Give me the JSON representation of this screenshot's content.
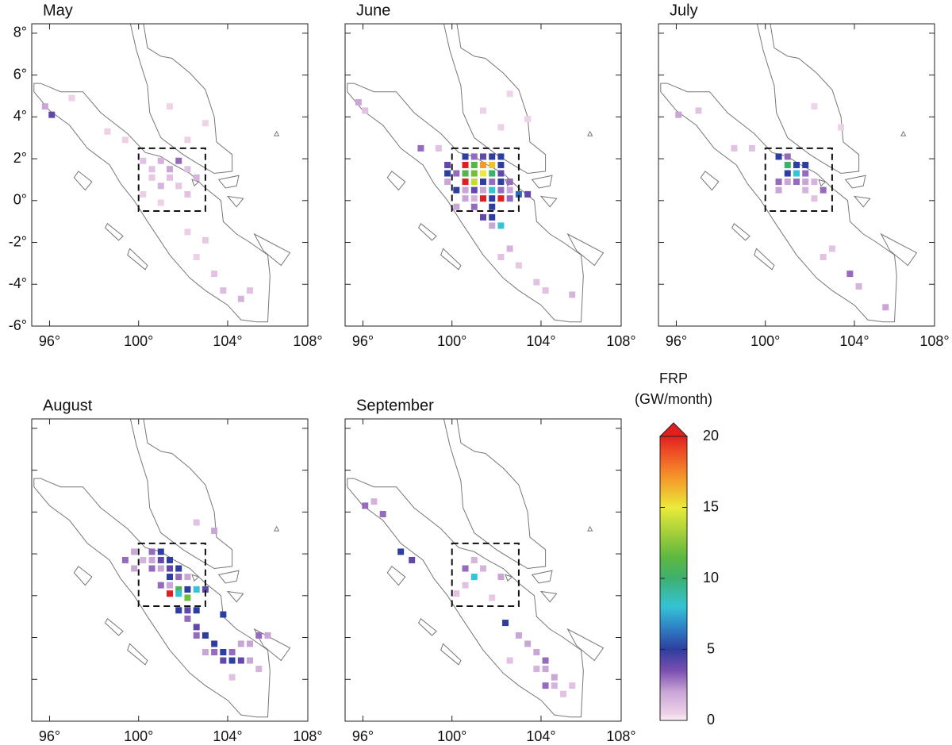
{
  "axes": {
    "xlim": [
      95.2,
      107.6
    ],
    "ylim": [
      -6,
      8.45
    ],
    "xticks": [
      {
        "value": 96,
        "label": "96°"
      },
      {
        "value": 100,
        "label": "100°"
      },
      {
        "value": 104,
        "label": "104°"
      },
      {
        "value": 108,
        "label": "108°"
      }
    ],
    "yticks": [
      {
        "value": 8,
        "label": "8°"
      },
      {
        "value": 6,
        "label": "6°"
      },
      {
        "value": 4,
        "label": "4°"
      },
      {
        "value": 2,
        "label": "2°"
      },
      {
        "value": 0,
        "label": "0°"
      },
      {
        "value": -2,
        "label": "-2°"
      },
      {
        "value": -4,
        "label": "-4°"
      },
      {
        "value": -6,
        "label": "-6°"
      }
    ]
  },
  "region_box": {
    "lon": [
      100,
      103
    ],
    "lat": [
      -0.5,
      2.5
    ]
  },
  "panels": [
    {
      "title": "May",
      "y_tick_labels": true,
      "cells": [
        [
          100.2,
          1.9,
          1
        ],
        [
          100.6,
          1.5,
          1
        ],
        [
          101,
          1.9,
          1.5
        ],
        [
          101.4,
          1.5,
          2
        ],
        [
          101.8,
          1.9,
          3
        ],
        [
          102.2,
          1.5,
          1
        ],
        [
          100.6,
          1.1,
          0.8
        ],
        [
          101,
          0.7,
          1.5
        ],
        [
          101.4,
          1.1,
          1
        ],
        [
          101.8,
          0.7,
          0.8
        ],
        [
          102.2,
          0.3,
          1
        ],
        [
          100.2,
          0.3,
          0.6
        ],
        [
          101,
          -0.1,
          0.5
        ],
        [
          102.6,
          1.1,
          1.5
        ],
        [
          96.1,
          4.1,
          4
        ],
        [
          95.8,
          4.5,
          2
        ],
        [
          97,
          4.9,
          0.5
        ],
        [
          98.6,
          3.3,
          0.5
        ],
        [
          99.4,
          2.9,
          0.5
        ],
        [
          102.2,
          -1.5,
          0.6
        ],
        [
          103,
          -1.9,
          0.8
        ],
        [
          103.4,
          -3.5,
          1
        ],
        [
          103.8,
          -4.3,
          1.2
        ],
        [
          104.6,
          -4.7,
          1.5
        ],
        [
          105,
          -4.3,
          1
        ],
        [
          102.6,
          -2.7,
          0.5
        ],
        [
          103,
          3.7,
          0.4
        ],
        [
          101.4,
          4.5,
          0.4
        ],
        [
          102.2,
          2.9,
          0.5
        ]
      ]
    },
    {
      "title": "June",
      "y_tick_labels": false,
      "cells": [
        [
          100.6,
          2.1,
          5
        ],
        [
          101,
          2.1,
          3
        ],
        [
          101.4,
          2.1,
          4
        ],
        [
          101.8,
          2.1,
          5
        ],
        [
          102.2,
          2.1,
          5
        ],
        [
          100.6,
          1.7,
          20
        ],
        [
          101,
          1.7,
          11
        ],
        [
          101.4,
          1.7,
          17
        ],
        [
          101.8,
          1.7,
          16
        ],
        [
          102.2,
          1.7,
          5
        ],
        [
          100.2,
          1.3,
          3
        ],
        [
          100.6,
          1.3,
          11
        ],
        [
          101,
          1.3,
          12
        ],
        [
          101.4,
          1.3,
          15
        ],
        [
          101.8,
          1.3,
          10
        ],
        [
          102.2,
          1.3,
          4
        ],
        [
          100.6,
          0.9,
          20
        ],
        [
          101,
          0.9,
          14
        ],
        [
          101.4,
          0.9,
          5
        ],
        [
          101.8,
          0.9,
          3
        ],
        [
          102.2,
          0.9,
          5
        ],
        [
          102.6,
          0.9,
          3
        ],
        [
          100.2,
          0.5,
          5
        ],
        [
          100.6,
          0.5,
          2
        ],
        [
          101,
          0.5,
          4
        ],
        [
          101.4,
          0.5,
          2
        ],
        [
          101.8,
          0.5,
          8
        ],
        [
          102.2,
          0.5,
          3
        ],
        [
          102.6,
          0.5,
          2
        ],
        [
          100.6,
          0.1,
          2
        ],
        [
          101,
          0.1,
          1.5
        ],
        [
          101.4,
          0.1,
          20
        ],
        [
          101.8,
          0.1,
          5
        ],
        [
          102.2,
          0.1,
          20
        ],
        [
          102.6,
          0.1,
          3
        ],
        [
          103,
          0.3,
          6
        ],
        [
          100.2,
          -0.3,
          2
        ],
        [
          101,
          -0.3,
          3
        ],
        [
          101.8,
          -0.3,
          5
        ],
        [
          101.4,
          -0.8,
          4
        ],
        [
          101.8,
          -0.8,
          5
        ],
        [
          102.2,
          -1.2,
          8
        ],
        [
          101.8,
          -1.2,
          2
        ],
        [
          96.1,
          4.3,
          1
        ],
        [
          95.8,
          4.7,
          2
        ],
        [
          98.6,
          2.5,
          3
        ],
        [
          99.4,
          2.5,
          1
        ],
        [
          99.8,
          1.7,
          4
        ],
        [
          99.8,
          1.3,
          5
        ],
        [
          99.8,
          0.9,
          2
        ],
        [
          103.4,
          0.3,
          4
        ],
        [
          102.6,
          -2.3,
          1.5
        ],
        [
          103.8,
          -3.9,
          1
        ],
        [
          104.2,
          -4.3,
          1
        ],
        [
          105.4,
          -4.5,
          1.5
        ],
        [
          103,
          -3.1,
          0.8
        ],
        [
          102.2,
          -2.7,
          1
        ],
        [
          101.4,
          4.3,
          0.5
        ],
        [
          102.2,
          3.5,
          0.5
        ],
        [
          103.4,
          3.9,
          0.5
        ],
        [
          102.6,
          5.1,
          0.4
        ]
      ]
    },
    {
      "title": "July",
      "y_tick_labels": false,
      "cells": [
        [
          100.6,
          2.1,
          5
        ],
        [
          101,
          2.1,
          3
        ],
        [
          101.4,
          1.7,
          5
        ],
        [
          101.8,
          1.7,
          5
        ],
        [
          101,
          1.3,
          5
        ],
        [
          101.4,
          1.3,
          8
        ],
        [
          101.8,
          1.3,
          3
        ],
        [
          101,
          1.7,
          10
        ],
        [
          100.6,
          0.9,
          3
        ],
        [
          101,
          0.9,
          2
        ],
        [
          101.4,
          0.9,
          3
        ],
        [
          101.8,
          0.9,
          2
        ],
        [
          102.2,
          0.9,
          1.5
        ],
        [
          100.6,
          0.5,
          2
        ],
        [
          101.8,
          0.5,
          1.5
        ],
        [
          102.2,
          0.1,
          1
        ],
        [
          102.6,
          0.5,
          3
        ],
        [
          96.1,
          4.1,
          2
        ],
        [
          97,
          4.3,
          1
        ],
        [
          98.6,
          2.5,
          1
        ],
        [
          99.4,
          2.5,
          1
        ],
        [
          103,
          -2.3,
          1
        ],
        [
          103.8,
          -3.5,
          3
        ],
        [
          104.2,
          -4.1,
          1.5
        ],
        [
          105.4,
          -5.1,
          2
        ],
        [
          102.6,
          -2.7,
          1
        ],
        [
          103.4,
          3.5,
          0.5
        ],
        [
          102.2,
          4.5,
          0.4
        ]
      ]
    },
    {
      "title": "August",
      "y_tick_labels": false,
      "cells": [
        [
          100.6,
          2.1,
          3
        ],
        [
          101,
          2.1,
          5
        ],
        [
          101.4,
          1.7,
          5
        ],
        [
          101,
          1.7,
          4
        ],
        [
          100.6,
          1.7,
          2
        ],
        [
          100.2,
          1.7,
          1.5
        ],
        [
          101.8,
          1.3,
          5
        ],
        [
          101.4,
          1.3,
          4
        ],
        [
          101,
          1.3,
          2
        ],
        [
          100.6,
          1.3,
          3
        ],
        [
          101.4,
          0.9,
          5
        ],
        [
          101.8,
          0.9,
          3
        ],
        [
          102.2,
          0.9,
          2
        ],
        [
          101,
          0.5,
          3
        ],
        [
          101.4,
          0.5,
          2
        ],
        [
          101.8,
          0.3,
          11
        ],
        [
          102.2,
          0.3,
          5
        ],
        [
          102.6,
          0.3,
          8
        ],
        [
          103,
          0.3,
          4
        ],
        [
          101.4,
          0.1,
          20
        ],
        [
          101.8,
          0.1,
          8
        ],
        [
          102.2,
          -0.1,
          12
        ],
        [
          101.8,
          -0.7,
          5
        ],
        [
          102.2,
          -0.7,
          4
        ],
        [
          102.6,
          -0.7,
          5
        ],
        [
          102.2,
          -1.1,
          3
        ],
        [
          102.6,
          -1.5,
          4
        ],
        [
          103,
          -1.9,
          5
        ],
        [
          103.4,
          -2.3,
          5
        ],
        [
          103.8,
          -2.7,
          5
        ],
        [
          103.8,
          -3.1,
          4
        ],
        [
          104.2,
          -3.1,
          5
        ],
        [
          104.6,
          -3.1,
          4
        ],
        [
          103.4,
          -2.7,
          3
        ],
        [
          103,
          -2.7,
          2
        ],
        [
          102.6,
          -1.9,
          3
        ],
        [
          104.2,
          -2.7,
          3
        ],
        [
          105,
          -3.1,
          2
        ],
        [
          104.6,
          -2.3,
          2
        ],
        [
          105,
          -2.3,
          2
        ],
        [
          105.4,
          -1.9,
          3
        ],
        [
          105.8,
          -1.9,
          2
        ],
        [
          103.8,
          -0.9,
          5
        ],
        [
          99.8,
          1.3,
          2
        ],
        [
          99.4,
          1.7,
          3
        ],
        [
          99.8,
          2.1,
          2
        ],
        [
          103.4,
          3.1,
          2
        ],
        [
          102.6,
          3.5,
          1
        ],
        [
          105.4,
          -3.5,
          1.5
        ],
        [
          104.2,
          -3.9,
          1
        ]
      ]
    },
    {
      "title": "September",
      "y_tick_labels": false,
      "cells": [
        [
          96.1,
          4.3,
          3
        ],
        [
          96.9,
          3.9,
          3
        ],
        [
          96.5,
          4.5,
          1.5
        ],
        [
          97.7,
          2.1,
          5
        ],
        [
          98.2,
          1.7,
          4
        ],
        [
          101,
          0.9,
          8
        ],
        [
          100.6,
          1.3,
          3
        ],
        [
          101.4,
          1.3,
          1.5
        ],
        [
          101,
          1.7,
          1.5
        ],
        [
          100.6,
          0.5,
          1
        ],
        [
          102.2,
          0.9,
          2
        ],
        [
          103,
          -1.9,
          2
        ],
        [
          102.4,
          -1.3,
          5
        ],
        [
          103.4,
          -2.3,
          2
        ],
        [
          103.8,
          -2.7,
          2
        ],
        [
          104.2,
          -3.1,
          3
        ],
        [
          104.2,
          -3.5,
          2
        ],
        [
          104.6,
          -3.9,
          2
        ],
        [
          103.8,
          -3.5,
          1.5
        ],
        [
          104.2,
          -4.3,
          3
        ],
        [
          104.6,
          -4.3,
          1.5
        ],
        [
          105,
          -4.7,
          1
        ],
        [
          105.4,
          -4.3,
          1
        ],
        [
          102.6,
          -3.1,
          1
        ],
        [
          100.2,
          0.1,
          1
        ],
        [
          101.8,
          -0.1,
          0.8
        ]
      ]
    }
  ],
  "colorbar": {
    "title": [
      "FRP",
      "(GW/month)"
    ],
    "lim": [
      0,
      20
    ],
    "ticks": [
      0,
      5,
      10,
      15,
      20
    ],
    "extend": "max"
  }
}
